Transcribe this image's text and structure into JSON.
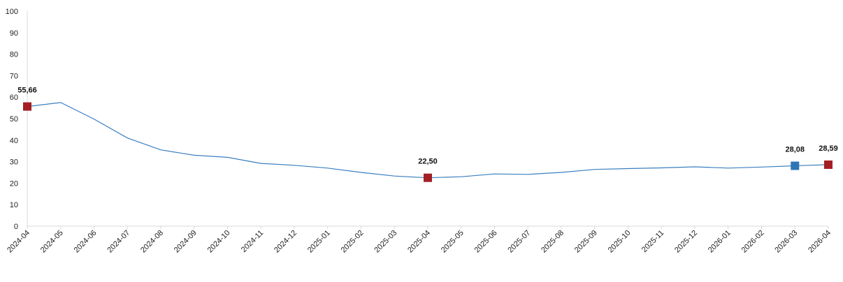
{
  "chart_data": {
    "type": "line",
    "title": "",
    "xlabel": "",
    "ylabel": "",
    "ylim": [
      0,
      100
    ],
    "yticks": [
      0,
      10,
      20,
      30,
      40,
      50,
      60,
      70,
      80,
      90,
      100
    ],
    "grid": false,
    "legend": "none",
    "categories": [
      "2024-04",
      "2024-05",
      "2024-06",
      "2024-07",
      "2024-08",
      "2024-09",
      "2024-10",
      "2024-11",
      "2024-12",
      "2025-01",
      "2025-02",
      "2025-03",
      "2025-04",
      "2025-05",
      "2025-06",
      "2025-07",
      "2025-08",
      "2025-09",
      "2025-10",
      "2025-11",
      "2025-12",
      "2026-01",
      "2026-02",
      "2026-03",
      "2026-04"
    ],
    "series": [
      {
        "values": [
          55.66,
          57.5,
          49.8,
          41.0,
          35.5,
          33.0,
          32.0,
          29.2,
          28.3,
          27.0,
          25.0,
          23.3,
          22.5,
          23.0,
          24.3,
          24.1,
          25.0,
          26.4,
          26.8,
          27.1,
          27.6,
          27.0,
          27.5,
          28.08,
          28.59
        ],
        "color": "#3a7fbf"
      }
    ],
    "highlights": [
      {
        "index": 0,
        "label": "55,66",
        "color": "#a31f24"
      },
      {
        "index": 12,
        "label": "22,50",
        "color": "#a31f24"
      },
      {
        "index": 23,
        "label": "28,08",
        "color": "#2e75b6"
      },
      {
        "index": 24,
        "label": "28,59",
        "color": "#a31f24"
      }
    ],
    "axis_color": "#d9d9d9"
  }
}
